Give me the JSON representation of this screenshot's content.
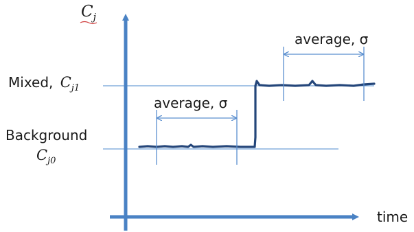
{
  "axes": {
    "y_label": {
      "base": "C",
      "sub": "j"
    },
    "x_label": "time"
  },
  "levels": {
    "mixed": {
      "text": "Mixed,",
      "symbol_base": "C",
      "symbol_sub": "j1"
    },
    "background": {
      "text": "Background",
      "symbol_base": "C",
      "symbol_sub": "j0"
    }
  },
  "windows": [
    {
      "label": "average, σ"
    },
    {
      "label": "average, σ"
    }
  ],
  "colors": {
    "axis": "#4a82c4",
    "reference_line": "#6fa0d6",
    "signal": "#24467a",
    "window": "#5b8fcf",
    "underline": "#d04040"
  }
}
